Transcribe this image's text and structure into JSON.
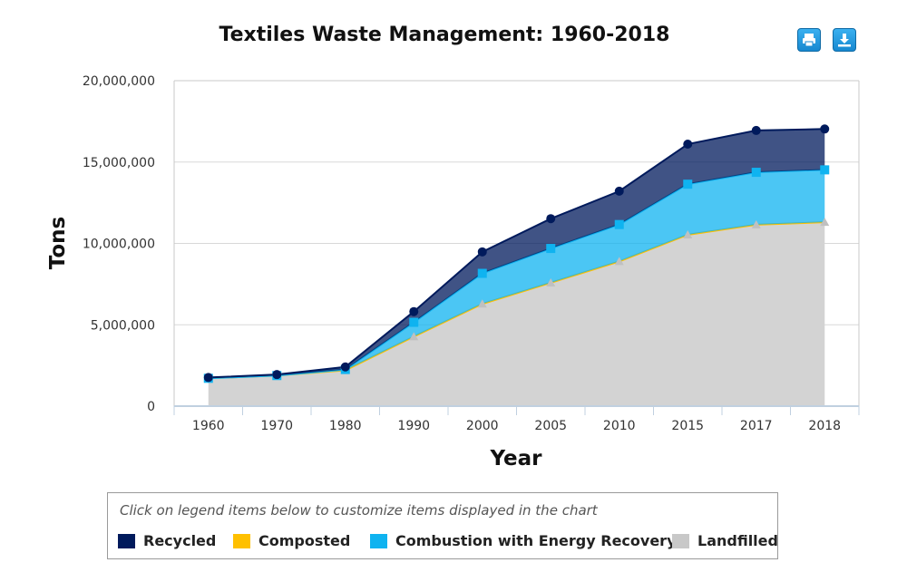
{
  "chart_data": {
    "type": "area",
    "stacked": true,
    "title": "Textiles Waste Management: 1960-2018",
    "xlabel": "Year",
    "ylabel": "Tons",
    "categories": [
      "1960",
      "1970",
      "1980",
      "1990",
      "2000",
      "2005",
      "2010",
      "2015",
      "2017",
      "2018"
    ],
    "ylim": [
      0,
      20000000
    ],
    "yticks": [
      0,
      5000000,
      10000000,
      15000000,
      20000000
    ],
    "ytick_labels": [
      "0",
      "5,000,000",
      "10,000,000",
      "15,000,000",
      "20,000,000"
    ],
    "series": [
      {
        "name": "Landfilled",
        "color": "#d3d3d3",
        "marker": "triangle",
        "values": [
          1710000,
          1880000,
          2200000,
          4270000,
          6280000,
          7580000,
          8890000,
          10530000,
          11150000,
          11300000
        ]
      },
      {
        "name": "Composted",
        "color": "#ffc000",
        "marker": "diamond",
        "values": [
          0,
          0,
          0,
          0,
          0,
          0,
          0,
          0,
          0,
          0
        ]
      },
      {
        "name": "Combustion with Energy Recovery",
        "color": "#0fb3f0",
        "marker": "square",
        "values": [
          0,
          0,
          50000,
          880000,
          1880000,
          2110000,
          2270000,
          3110000,
          3220000,
          3220000
        ]
      },
      {
        "name": "Recycled",
        "color": "#001a5c",
        "marker": "circle",
        "values": [
          50000,
          60000,
          160000,
          660000,
          1320000,
          1830000,
          2050000,
          2460000,
          2570000,
          2510000
        ]
      }
    ]
  },
  "legend": {
    "hint": "Click on legend items below to customize items displayed in the chart",
    "items": [
      {
        "label": "Recycled",
        "color": "#001a5c"
      },
      {
        "label": "Composted",
        "color": "#ffc000"
      },
      {
        "label": "Combustion with Energy Recovery",
        "color": "#0fb3f0"
      },
      {
        "label": "Landfilled",
        "color": "#c8c8c8"
      }
    ]
  },
  "toolbar": {
    "print_icon": "print-icon",
    "download_icon": "download-icon"
  }
}
